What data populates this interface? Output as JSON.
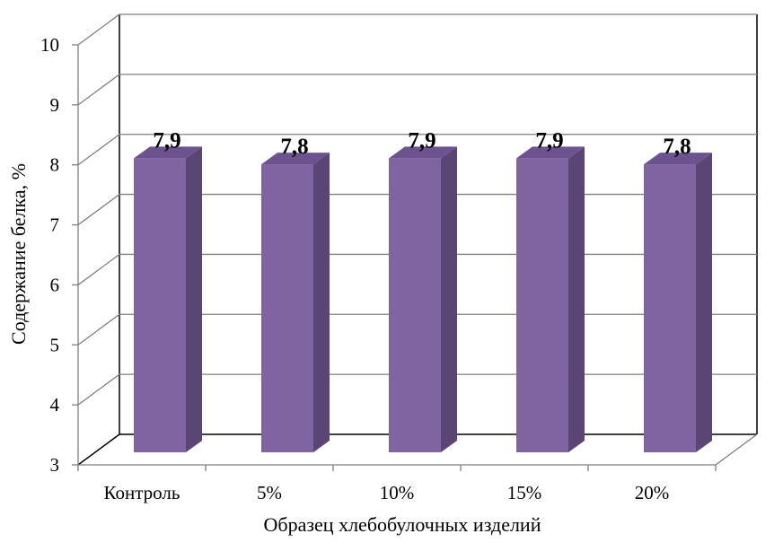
{
  "chart_data": {
    "type": "bar",
    "title": "",
    "xlabel": "Образец хлебобулочных изделий",
    "ylabel": "Содержание белка, %",
    "categories": [
      "Контроль",
      "5%",
      "10%",
      "15%",
      "20%"
    ],
    "values": [
      7.9,
      7.8,
      7.9,
      7.9,
      7.8
    ],
    "data_labels": [
      "7,9",
      "7,8",
      "7,9",
      "7,9",
      "7,8"
    ],
    "yticks": [
      "3",
      "4",
      "5",
      "6",
      "7",
      "8",
      "9",
      "10"
    ],
    "ylim": [
      3,
      10
    ],
    "grid": true,
    "legend": "none",
    "three_d": true,
    "colors": {
      "bar_front": "#8064A2",
      "bar_side": "#5A4675",
      "bar_top": "#6B5390",
      "grid": "#808080",
      "axis": "#000000"
    }
  }
}
